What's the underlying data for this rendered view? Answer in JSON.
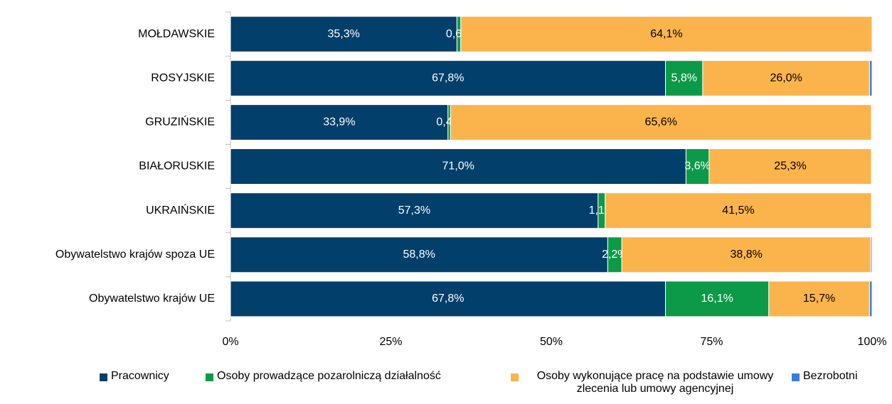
{
  "chart_data": {
    "type": "stacked_bar_horizontal",
    "categories": [
      "MOŁDAWSKIE",
      "ROSYJSKIE",
      "GRUZIŃSKIE",
      "BIAŁORUSKIE",
      "UKRAIŃSKIE",
      "Obywatelstwo krajów spoza UE",
      "Obywatelstwo krajów UE"
    ],
    "series": [
      {
        "name": "Pracownicy",
        "color": "#033f6b",
        "label_color": "#ffffff",
        "values": [
          35.3,
          67.8,
          33.9,
          71.0,
          57.3,
          58.8,
          67.8
        ],
        "value_labels": [
          "35,3%",
          "67,8%",
          "33,9%",
          "71,0%",
          "57,3%",
          "58,8%",
          "67,8%"
        ]
      },
      {
        "name": "Osoby prowadzące pozarolniczą działalność",
        "color": "#0d9a48",
        "label_color": "#ffffff",
        "values": [
          0.6,
          5.8,
          0.4,
          3.6,
          1.1,
          2.2,
          16.1
        ],
        "value_labels": [
          "0,6%",
          "5,8%",
          "0,4%",
          "3,6%",
          "1,1%",
          "2,2%",
          "16,1%"
        ]
      },
      {
        "name": "Osoby wykonujące pracę na podstawie umowy zlecenia lub umowy agencyjnej",
        "color": "#fbb44b",
        "label_color": "#000000",
        "values": [
          64.1,
          26.0,
          65.6,
          25.3,
          41.5,
          38.8,
          15.7
        ],
        "value_labels": [
          "64,1%",
          "26,0%",
          "65,6%",
          "25,3%",
          "41,5%",
          "38,8%",
          "15,7%"
        ]
      },
      {
        "name": "Bezrobotni",
        "color": "#3b7ddd",
        "values": [
          0.0,
          0.4,
          0.1,
          0.1,
          0.1,
          0.2,
          0.4
        ]
      }
    ],
    "xlim": [
      0,
      100
    ],
    "xticks": [
      {
        "value": 0,
        "label": "0%"
      },
      {
        "value": 25,
        "label": "25%"
      },
      {
        "value": 50,
        "label": "50%"
      },
      {
        "value": 75,
        "label": "75%"
      },
      {
        "value": 100,
        "label": "100%"
      }
    ]
  }
}
